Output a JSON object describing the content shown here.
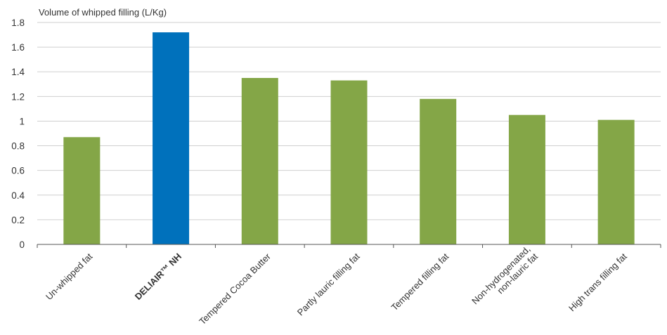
{
  "chart_data": {
    "type": "bar",
    "ylabel": "Volume of whipped filling (L/Kg)",
    "ylim": [
      0,
      1.8
    ],
    "yticks": [
      0,
      0.2,
      0.4,
      0.6,
      0.8,
      1,
      1.2,
      1.4,
      1.6,
      1.8
    ],
    "yticks_labels": [
      "0",
      "0.2",
      "0.4",
      "0.6",
      "0.8",
      "1",
      "1.2",
      "1.4",
      "1.6",
      "1.8"
    ],
    "grid": true,
    "categories": [
      {
        "label": "Un-whipped fat",
        "value": 0.87,
        "highlight": false
      },
      {
        "label": "DELIAIR™ NH",
        "value": 1.72,
        "highlight": true
      },
      {
        "label": "Tempered Cocoa Butter",
        "value": 1.35,
        "highlight": false
      },
      {
        "label": "Partly lauric filling fat",
        "value": 1.33,
        "highlight": false
      },
      {
        "label": "Tempered filling fat",
        "value": 1.18,
        "highlight": false
      },
      {
        "label": "Non-hydrogenated,\nnon-lauric fat",
        "value": 1.05,
        "highlight": false
      },
      {
        "label": "High trans filling fat",
        "value": 1.01,
        "highlight": false
      }
    ],
    "colors": {
      "default": "#84a647",
      "highlight": "#0071bc"
    }
  }
}
